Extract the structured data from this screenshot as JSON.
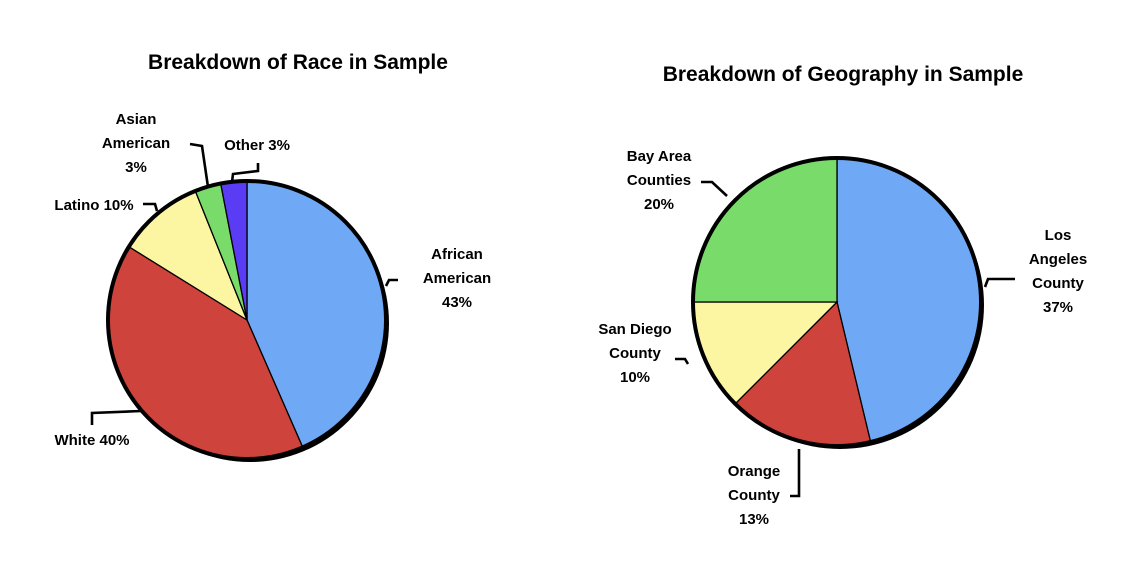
{
  "chart_data": [
    {
      "type": "pie",
      "title": "Breakdown of Race in Sample",
      "slices": [
        {
          "label_lines": [
            "African",
            "American",
            "43%"
          ],
          "value": 43,
          "color": "#6fa8f5"
        },
        {
          "label_lines": [
            "White 40%"
          ],
          "value": 40,
          "color": "#cf433d"
        },
        {
          "label_lines": [
            "Latino 10%"
          ],
          "value": 10,
          "color": "#fcf6a2"
        },
        {
          "label_lines": [
            "Asian",
            "American",
            "3%"
          ],
          "value": 3,
          "color": "#79db6a"
        },
        {
          "label_lines": [
            "Other 3%"
          ],
          "value": 3,
          "color": "#5b3cf5"
        }
      ]
    },
    {
      "type": "pie",
      "title": "Breakdown of Geography in Sample",
      "slices": [
        {
          "label_lines": [
            "Los",
            "Angeles",
            "County",
            "37%"
          ],
          "value": 37,
          "color": "#6fa8f5"
        },
        {
          "label_lines": [
            "Orange",
            "County",
            "13%"
          ],
          "value": 13,
          "color": "#cf433d"
        },
        {
          "label_lines": [
            "San Diego",
            "County",
            "10%"
          ],
          "value": 10,
          "color": "#fcf6a2"
        },
        {
          "label_lines": [
            "Bay Area",
            "Counties",
            "20%"
          ],
          "value": 20,
          "color": "#79db6a"
        }
      ]
    }
  ]
}
